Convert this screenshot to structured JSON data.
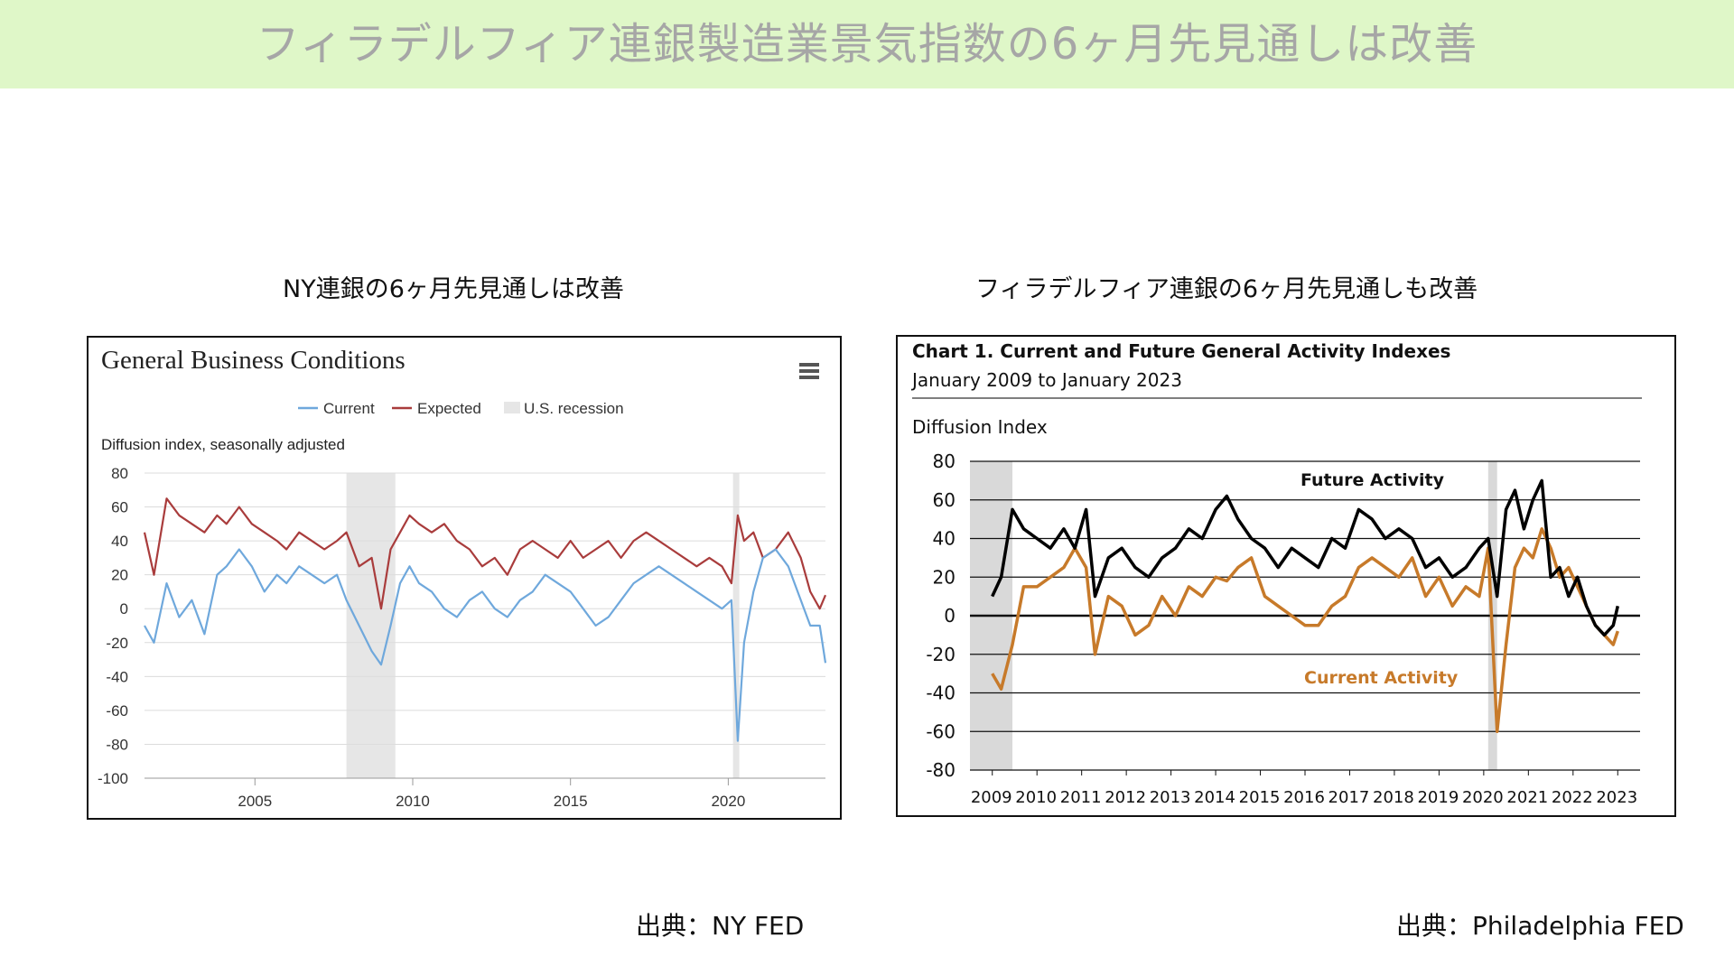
{
  "header": {
    "title": "フィラデルフィア連銀製造業景気指数の6ヶ月先見通しは改善"
  },
  "left": {
    "subtitle": "NY連銀の6ヶ月先見通しは改善",
    "source": "出典：NY FED"
  },
  "right": {
    "subtitle": "フィラデルフィア連銀の6ヶ月先見通しも改善",
    "source": "出典：Philadelphia FED"
  },
  "colors": {
    "banner": "#dff7c8",
    "current_ny": "#6fa8dc",
    "expected_ny": "#a93c3c",
    "future_philly": "#000000",
    "current_philly": "#c77a2a",
    "recession": "#e6e6e6"
  },
  "chart_data": [
    {
      "type": "line",
      "title": "General Business Conditions",
      "subtitle": "Diffusion index, seasonally adjusted",
      "menu_icon": "hamburger-menu-icon",
      "legend": [
        "Current",
        "Expected",
        "U.S. recession"
      ],
      "legend_position": "top-center",
      "grid": true,
      "xlim": [
        2001.5,
        2023.08
      ],
      "ylim": [
        -100,
        80
      ],
      "xticks": [
        2005,
        2010,
        2015,
        2020
      ],
      "yticks": [
        80,
        60,
        40,
        20,
        0,
        -20,
        -40,
        -60,
        -80,
        -100
      ],
      "recessions": [
        [
          2007.9,
          2009.45
        ],
        [
          2020.15,
          2020.35
        ]
      ],
      "series": [
        {
          "name": "Current",
          "x": [
            2001.5,
            2001.8,
            2002.2,
            2002.6,
            2003.0,
            2003.4,
            2003.8,
            2004.1,
            2004.5,
            2004.9,
            2005.3,
            2005.7,
            2006.0,
            2006.4,
            2006.8,
            2007.2,
            2007.6,
            2007.9,
            2008.3,
            2008.7,
            2009.0,
            2009.3,
            2009.6,
            2009.9,
            2010.2,
            2010.6,
            2011.0,
            2011.4,
            2011.8,
            2012.2,
            2012.6,
            2013.0,
            2013.4,
            2013.8,
            2014.2,
            2014.6,
            2015.0,
            2015.4,
            2015.8,
            2016.2,
            2016.6,
            2017.0,
            2017.4,
            2017.8,
            2018.2,
            2018.6,
            2019.0,
            2019.4,
            2019.8,
            2020.1,
            2020.3,
            2020.5,
            2020.8,
            2021.1,
            2021.5,
            2021.9,
            2022.3,
            2022.6,
            2022.9,
            2023.08
          ],
          "values": [
            -10,
            -20,
            15,
            -5,
            5,
            -15,
            20,
            25,
            35,
            25,
            10,
            20,
            15,
            25,
            20,
            15,
            20,
            5,
            -10,
            -25,
            -33,
            -10,
            15,
            25,
            15,
            10,
            0,
            -5,
            5,
            10,
            0,
            -5,
            5,
            10,
            20,
            15,
            10,
            0,
            -10,
            -5,
            5,
            15,
            20,
            25,
            20,
            15,
            10,
            5,
            0,
            5,
            -78,
            -20,
            10,
            30,
            35,
            25,
            5,
            -10,
            -10,
            -32
          ]
        },
        {
          "name": "Expected",
          "x": [
            2001.5,
            2001.8,
            2002.2,
            2002.6,
            2003.0,
            2003.4,
            2003.8,
            2004.1,
            2004.5,
            2004.9,
            2005.3,
            2005.7,
            2006.0,
            2006.4,
            2006.8,
            2007.2,
            2007.6,
            2007.9,
            2008.3,
            2008.7,
            2009.0,
            2009.3,
            2009.6,
            2009.9,
            2010.2,
            2010.6,
            2011.0,
            2011.4,
            2011.8,
            2012.2,
            2012.6,
            2013.0,
            2013.4,
            2013.8,
            2014.2,
            2014.6,
            2015.0,
            2015.4,
            2015.8,
            2016.2,
            2016.6,
            2017.0,
            2017.4,
            2017.8,
            2018.2,
            2018.6,
            2019.0,
            2019.4,
            2019.8,
            2020.1,
            2020.3,
            2020.5,
            2020.8,
            2021.1,
            2021.5,
            2021.9,
            2022.3,
            2022.6,
            2022.9,
            2023.08
          ],
          "values": [
            45,
            20,
            65,
            55,
            50,
            45,
            55,
            50,
            60,
            50,
            45,
            40,
            35,
            45,
            40,
            35,
            40,
            45,
            25,
            30,
            0,
            35,
            45,
            55,
            50,
            45,
            50,
            40,
            35,
            25,
            30,
            20,
            35,
            40,
            35,
            30,
            40,
            30,
            35,
            40,
            30,
            40,
            45,
            40,
            35,
            30,
            25,
            30,
            25,
            15,
            55,
            40,
            45,
            30,
            35,
            45,
            30,
            10,
            0,
            8
          ]
        }
      ]
    },
    {
      "type": "line",
      "title": "Chart 1. Current and Future General Activity Indexes",
      "subtitle": "January 2009 to January 2023",
      "ylabel": "Diffusion Index",
      "grid": true,
      "xlim": [
        2008.5,
        2023.5
      ],
      "ylim": [
        -80,
        80
      ],
      "xticks": [
        2009,
        2010,
        2011,
        2012,
        2013,
        2014,
        2015,
        2016,
        2017,
        2018,
        2019,
        2020,
        2021,
        2022,
        2023
      ],
      "yticks": [
        80,
        60,
        40,
        20,
        0,
        -20,
        -40,
        -60,
        -80
      ],
      "recessions": [
        [
          2008.5,
          2009.45
        ],
        [
          2020.1,
          2020.3
        ]
      ],
      "annotations": [
        "Future Activity",
        "Current Activity"
      ],
      "series": [
        {
          "name": "Future Activity",
          "x": [
            2009.0,
            2009.2,
            2009.45,
            2009.7,
            2010.0,
            2010.3,
            2010.6,
            2010.85,
            2011.1,
            2011.3,
            2011.6,
            2011.9,
            2012.2,
            2012.5,
            2012.8,
            2013.1,
            2013.4,
            2013.7,
            2014.0,
            2014.25,
            2014.5,
            2014.8,
            2015.1,
            2015.4,
            2015.7,
            2016.0,
            2016.3,
            2016.6,
            2016.9,
            2017.2,
            2017.5,
            2017.8,
            2018.1,
            2018.4,
            2018.7,
            2019.0,
            2019.3,
            2019.6,
            2019.9,
            2020.1,
            2020.3,
            2020.5,
            2020.7,
            2020.9,
            2021.1,
            2021.3,
            2021.5,
            2021.7,
            2021.9,
            2022.1,
            2022.3,
            2022.5,
            2022.7,
            2022.9,
            2023.0
          ],
          "values": [
            10,
            20,
            55,
            45,
            40,
            35,
            45,
            35,
            55,
            10,
            30,
            35,
            25,
            20,
            30,
            35,
            45,
            40,
            55,
            62,
            50,
            40,
            35,
            25,
            35,
            30,
            25,
            40,
            35,
            55,
            50,
            40,
            45,
            40,
            25,
            30,
            20,
            25,
            35,
            40,
            10,
            55,
            65,
            45,
            60,
            70,
            20,
            25,
            10,
            20,
            5,
            -5,
            -10,
            -5,
            5
          ]
        },
        {
          "name": "Current Activity",
          "x": [
            2009.0,
            2009.2,
            2009.45,
            2009.7,
            2010.0,
            2010.3,
            2010.6,
            2010.85,
            2011.1,
            2011.3,
            2011.6,
            2011.9,
            2012.2,
            2012.5,
            2012.8,
            2013.1,
            2013.4,
            2013.7,
            2014.0,
            2014.25,
            2014.5,
            2014.8,
            2015.1,
            2015.4,
            2015.7,
            2016.0,
            2016.3,
            2016.6,
            2016.9,
            2017.2,
            2017.5,
            2017.8,
            2018.1,
            2018.4,
            2018.7,
            2019.0,
            2019.3,
            2019.6,
            2019.9,
            2020.1,
            2020.3,
            2020.5,
            2020.7,
            2020.9,
            2021.1,
            2021.3,
            2021.5,
            2021.7,
            2021.9,
            2022.1,
            2022.3,
            2022.5,
            2022.7,
            2022.9,
            2023.0
          ],
          "values": [
            -30,
            -38,
            -15,
            15,
            15,
            20,
            25,
            35,
            25,
            -20,
            10,
            5,
            -10,
            -5,
            10,
            0,
            15,
            10,
            20,
            18,
            25,
            30,
            10,
            5,
            0,
            -5,
            -5,
            5,
            10,
            25,
            30,
            25,
            20,
            30,
            10,
            20,
            5,
            15,
            10,
            35,
            -60,
            -15,
            25,
            35,
            30,
            45,
            35,
            20,
            25,
            15,
            5,
            -5,
            -10,
            -15,
            -8
          ]
        }
      ]
    }
  ]
}
